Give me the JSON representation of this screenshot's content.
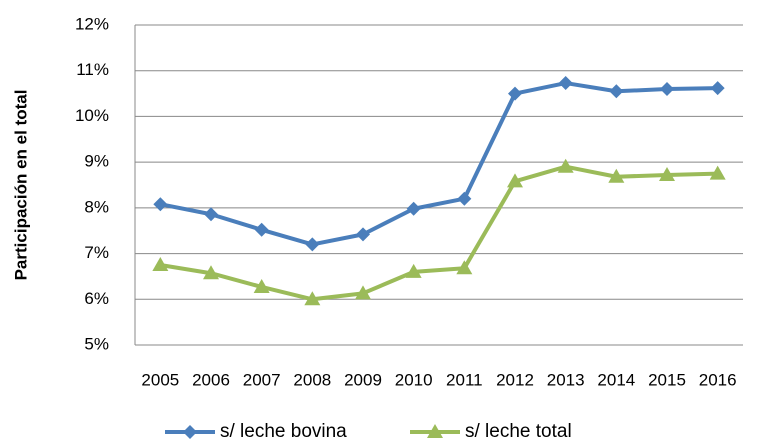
{
  "chart_data": {
    "type": "line",
    "y_label": "Participación en el total",
    "categories": [
      "2005",
      "2006",
      "2007",
      "2008",
      "2009",
      "2010",
      "2011",
      "2012",
      "2013",
      "2014",
      "2015",
      "2016"
    ],
    "series": [
      {
        "name": "s/ leche bovina",
        "color": "#4a7ebb",
        "marker": "diamond",
        "values": [
          8.08,
          7.86,
          7.52,
          7.2,
          7.42,
          7.98,
          8.2,
          10.5,
          10.73,
          10.55,
          10.6,
          10.62
        ]
      },
      {
        "name": "s/ leche total",
        "color": "#9bbb59",
        "marker": "triangle",
        "values": [
          6.75,
          6.57,
          6.27,
          6.0,
          6.13,
          6.6,
          6.68,
          8.58,
          8.9,
          8.68,
          8.72,
          8.75
        ]
      }
    ],
    "ylim": [
      5,
      12
    ],
    "yticks": [
      {
        "value": 5,
        "label": "5%"
      },
      {
        "value": 6,
        "label": "6%"
      },
      {
        "value": 7,
        "label": "7%"
      },
      {
        "value": 8,
        "label": "8%"
      },
      {
        "value": 9,
        "label": "9%"
      },
      {
        "value": 10,
        "label": "10%"
      },
      {
        "value": 11,
        "label": "11%"
      },
      {
        "value": 12,
        "label": "12%"
      }
    ],
    "grid": true,
    "legend": "bottom"
  }
}
